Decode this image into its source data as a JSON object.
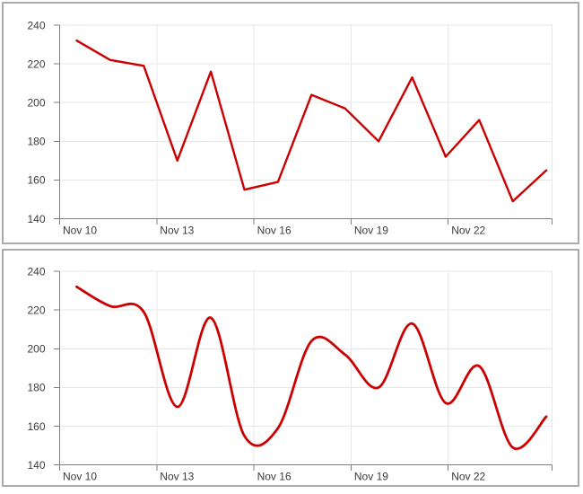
{
  "page": {
    "background": "#ffffff"
  },
  "colors": {
    "series_line": "#cc0000",
    "gridline": "#e7e7e7",
    "axis_line": "#7f7f7f",
    "tick_mark": "#7f7f7f",
    "tick_label": "#3b3b3b",
    "panel_border": "#ababab",
    "panel_background": "#ffffff"
  },
  "chart_data": [
    {
      "type": "line",
      "title": "",
      "xlabel": "",
      "ylabel": "",
      "interpolation": "linear",
      "grid": true,
      "legend": "none",
      "x": [
        "Nov 10",
        "Nov 11",
        "Nov 12",
        "Nov 13",
        "Nov 14",
        "Nov 15",
        "Nov 16",
        "Nov 17",
        "Nov 18",
        "Nov 19",
        "Nov 20",
        "Nov 21",
        "Nov 22",
        "Nov 23",
        "Nov 24"
      ],
      "series": [
        {
          "name": "value",
          "color": "#cc0000",
          "values": [
            232,
            222,
            219,
            170,
            216,
            155,
            159,
            204,
            197,
            180,
            213,
            172,
            191,
            149,
            165
          ]
        }
      ],
      "x_tick_labels": [
        "Nov 10",
        "Nov 13",
        "Nov 16",
        "Nov 19",
        "Nov 22"
      ],
      "x_tick_indices": [
        0,
        3,
        6,
        9,
        12
      ],
      "y_ticks": [
        240,
        220,
        200,
        180,
        160,
        140
      ],
      "y_tick_labels": [
        "240",
        "220",
        "200",
        "180",
        "160",
        "140"
      ],
      "ylim": [
        140,
        240
      ]
    },
    {
      "type": "line",
      "title": "",
      "xlabel": "",
      "ylabel": "",
      "interpolation": "smooth",
      "grid": true,
      "legend": "none",
      "x": [
        "Nov 10",
        "Nov 11",
        "Nov 12",
        "Nov 13",
        "Nov 14",
        "Nov 15",
        "Nov 16",
        "Nov 17",
        "Nov 18",
        "Nov 19",
        "Nov 20",
        "Nov 21",
        "Nov 22",
        "Nov 23",
        "Nov 24"
      ],
      "series": [
        {
          "name": "value",
          "color": "#cc0000",
          "values": [
            232,
            222,
            219,
            170,
            216,
            155,
            159,
            204,
            197,
            180,
            213,
            172,
            191,
            149,
            165
          ]
        }
      ],
      "x_tick_labels": [
        "Nov 10",
        "Nov 13",
        "Nov 16",
        "Nov 19",
        "Nov 22"
      ],
      "x_tick_indices": [
        0,
        3,
        6,
        9,
        12
      ],
      "y_ticks": [
        240,
        220,
        200,
        180,
        160,
        140
      ],
      "y_tick_labels": [
        "240",
        "220",
        "200",
        "180",
        "160",
        "140"
      ],
      "ylim": [
        140,
        240
      ]
    }
  ]
}
